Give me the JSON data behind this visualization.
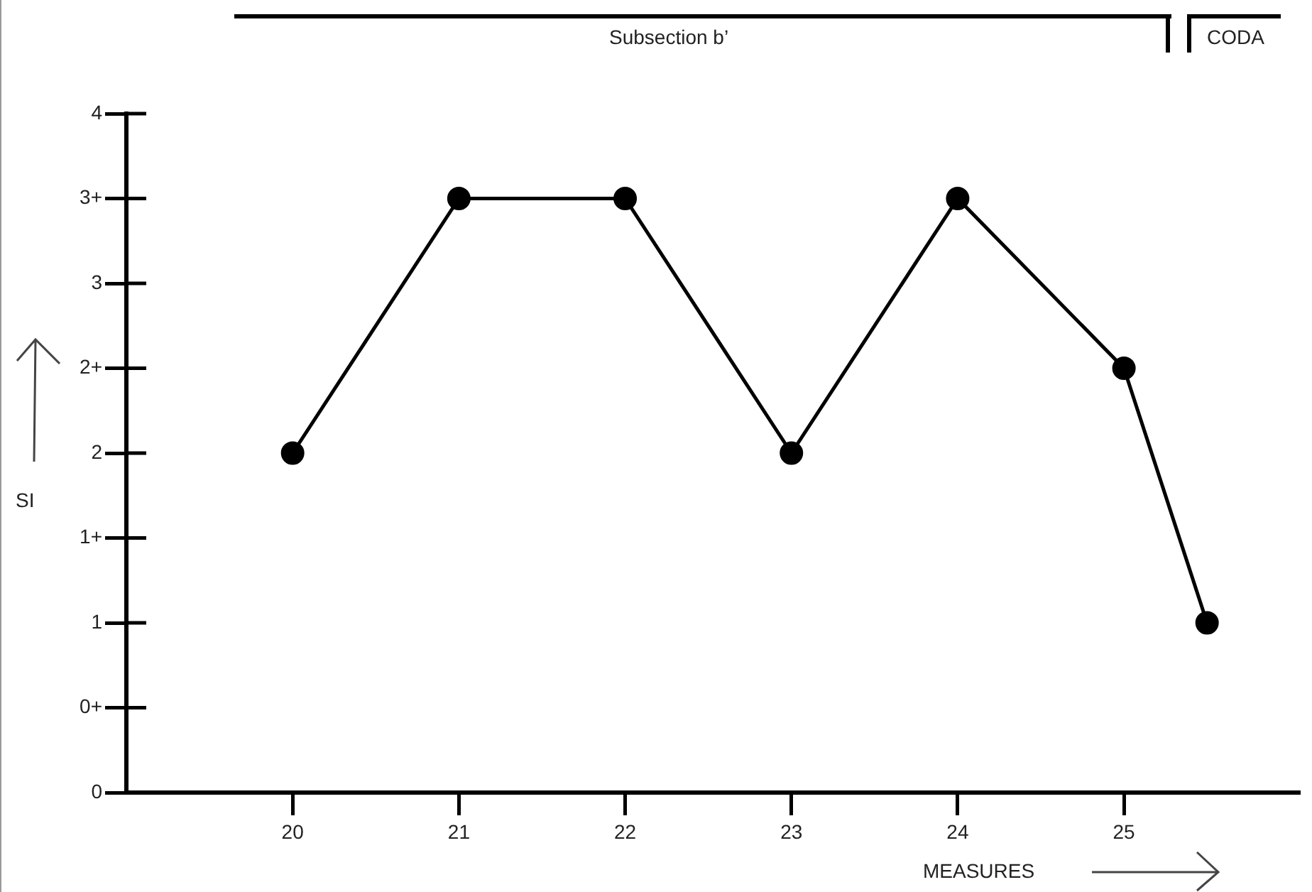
{
  "chart_data": {
    "type": "line",
    "xlabel": "MEASURES",
    "ylabel": "SI",
    "annotations": [
      "Subsection b’",
      "CODA"
    ],
    "x": [
      20,
      21,
      22,
      23,
      24,
      25,
      25.5
    ],
    "values": [
      2,
      3.5,
      3.5,
      2,
      3.5,
      2.5,
      1
    ],
    "color": "#000000",
    "xlim": [
      19,
      26.05
    ],
    "xticks": [
      20,
      21,
      22,
      23,
      24,
      25
    ],
    "ylim": [
      0,
      4
    ],
    "yticks": [
      0,
      {
        "value": 0.5,
        "label": "0+"
      },
      1,
      {
        "value": 1.5,
        "label": "1+"
      },
      2,
      {
        "value": 2.5,
        "label": "2+"
      },
      3,
      {
        "value": 3.5,
        "label": "3+"
      },
      4
    ],
    "grid": false,
    "legend": false,
    "marker": "circle",
    "line_style": "solid"
  }
}
